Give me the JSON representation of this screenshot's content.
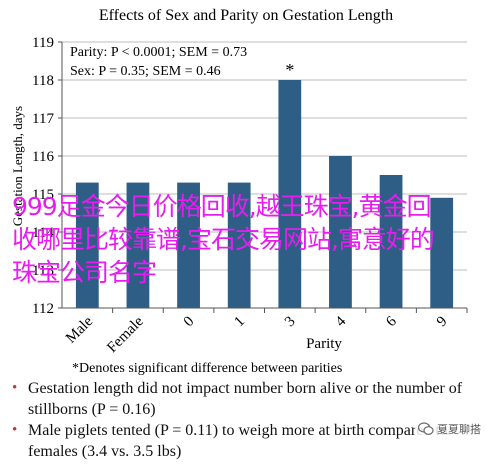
{
  "chart_data": {
    "type": "bar",
    "title": "Effects of Sex and Parity on Gestation Length",
    "xlabel": "Parity",
    "ylabel": "Gestation Length, days",
    "categories": [
      "Male",
      "Female",
      "0",
      "1",
      "3",
      "4",
      "6",
      "9"
    ],
    "values": [
      115.3,
      115.3,
      115.3,
      115.3,
      118.0,
      116.0,
      115.5,
      114.9
    ],
    "starred_category": "3",
    "ylim": [
      112,
      119
    ],
    "yticks": [
      112,
      113,
      114,
      115,
      116,
      117,
      118,
      119
    ],
    "grid": true,
    "bar_color": "#2e5d85",
    "annotations": [
      "Parity: P < 0.0001; SEM = 0.73",
      "Sex: P = 0.35; SEM = 0.46"
    ],
    "star_label": "*",
    "footnote": "*Denotes significant difference between parities"
  },
  "notes": [
    "Gestation length did not impact number born alive or the number of stillborns (P = 0.16)",
    "Male piglets tented (P = 0.11) to weigh more at birth compared to females (3.4 vs. 3.5 lbs)"
  ],
  "bullet_char": "•",
  "bullet_color": "#c0392b",
  "watermark": "999足金今日价格回收,越王珠宝,黄金回收哪里比较靠谱,宝石交易网站,寓意好的珠宝公司名字",
  "badge": {
    "icon": "wechat-icon",
    "text": "夏夏聊搭"
  }
}
